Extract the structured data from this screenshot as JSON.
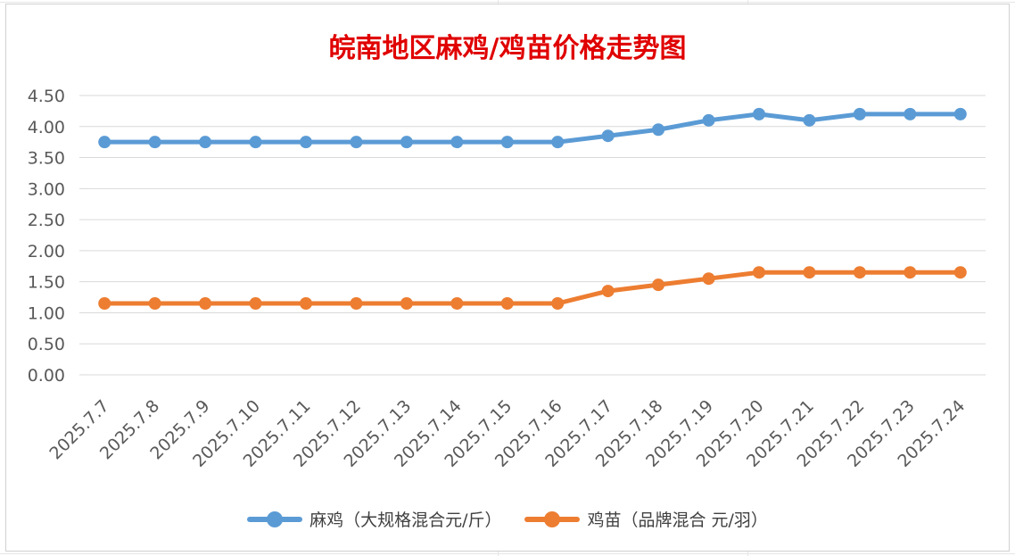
{
  "chart_data": {
    "type": "line",
    "title": "皖南地区麻鸡/鸡苗价格走势图",
    "categories": [
      "2025.7.7",
      "2025.7.8",
      "2025.7.9",
      "2025.7.10",
      "2025.7.11",
      "2025.7.12",
      "2025.7.13",
      "2025.7.14",
      "2025.7.15",
      "2025.7.16",
      "2025.7.17",
      "2025.7.18",
      "2025.7.19",
      "2025.7.20",
      "2025.7.21",
      "2025.7.22",
      "2025.7.23",
      "2025.7.24"
    ],
    "ylim": [
      0,
      4.5
    ],
    "yticks": [
      "0.00",
      "0.50",
      "1.00",
      "1.50",
      "2.00",
      "2.50",
      "3.00",
      "3.50",
      "4.00",
      "4.50"
    ],
    "grid": true,
    "legend_position": "bottom",
    "series": [
      {
        "name": "麻鸡（大规格混合元/斤）",
        "color": "#5b9bd5",
        "values": [
          3.75,
          3.75,
          3.75,
          3.75,
          3.75,
          3.75,
          3.75,
          3.75,
          3.75,
          3.75,
          3.85,
          3.95,
          4.1,
          4.2,
          4.1,
          4.2,
          4.2,
          4.2
        ]
      },
      {
        "name": "鸡苗（品牌混合 元/羽）",
        "color": "#ed7d31",
        "values": [
          1.15,
          1.15,
          1.15,
          1.15,
          1.15,
          1.15,
          1.15,
          1.15,
          1.15,
          1.15,
          1.35,
          1.45,
          1.55,
          1.65,
          1.65,
          1.65,
          1.65,
          1.65
        ]
      }
    ]
  },
  "colors": {
    "title": "#e00000",
    "grid": "#d9d9d9",
    "axis_text": "#595959"
  }
}
